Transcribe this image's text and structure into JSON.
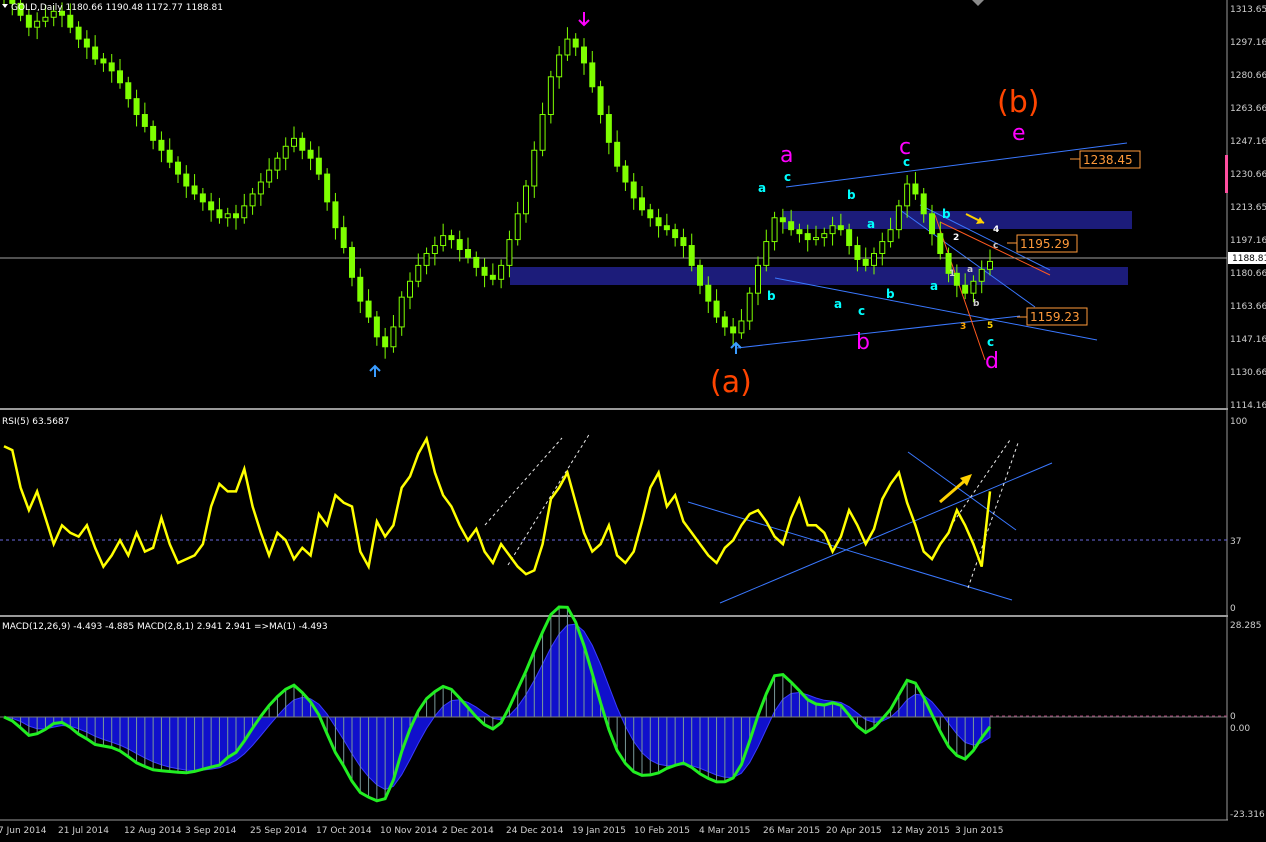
{
  "window": {
    "main_header": "GOLD,Daily  1180.66 1190.48 1172.77 1188.81",
    "rsi_header": "RSI(5) 63.5687",
    "macd_header": "MACD(12,26,9) -4.493 -4.885  MACD(2,8,1) 2.941 2.941  =>MA(1) -4.493"
  },
  "colors": {
    "background": "#000000",
    "candle": "#7fff00",
    "rsi_line": "#ffff00",
    "macd_line": "#22ee22",
    "macd_hist": "#1010cc",
    "zone": "#1c1c7a",
    "trendline": "#3a78ff",
    "orange_label": "#ff4500",
    "magenta_label": "#ff00ff",
    "cyan_label": "#00ffff",
    "price_line": "#a0a0a0"
  },
  "chart_data": [
    {
      "type": "candlestick",
      "title": "GOLD,Daily",
      "ohlc_last": {
        "open": 1180.66,
        "high": 1190.48,
        "low": 1172.77,
        "close": 1188.81
      },
      "current_price": "1188.81",
      "y_ticks": [
        "1313.65",
        "1297.16",
        "1280.66",
        "1263.66",
        "1247.16",
        "1230.66",
        "1213.65",
        "1197.16",
        "1180.66",
        "1163.66",
        "1147.16",
        "1130.66",
        "1114.16"
      ],
      "x_ticks": [
        "7 Jun 2014",
        "21 Jul 2014",
        "12 Aug 2014",
        "3 Sep 2014",
        "25 Sep 2014",
        "17 Oct 2014",
        "10 Nov 2014",
        "2 Dec 2014",
        "24 Dec 2014",
        "19 Jan 2015",
        "10 Feb 2015",
        "4 Mar 2015",
        "26 Mar 2015",
        "20 Apr 2015",
        "12 May 2015",
        "3 Jun 2015"
      ],
      "close_series": [
        1322,
        1318,
        1312,
        1306,
        1309,
        1311,
        1314,
        1312,
        1306,
        1300,
        1296,
        1290,
        1288,
        1284,
        1278,
        1270,
        1262,
        1256,
        1249,
        1244,
        1238,
        1232,
        1226,
        1222,
        1218,
        1214,
        1210,
        1212,
        1210,
        1216,
        1222,
        1228,
        1234,
        1240,
        1246,
        1250,
        1244,
        1240,
        1232,
        1218,
        1205,
        1195,
        1180,
        1168,
        1160,
        1150,
        1145,
        1155,
        1170,
        1178,
        1186,
        1192,
        1196,
        1201,
        1199,
        1194,
        1190,
        1185,
        1181,
        1179,
        1186,
        1199,
        1212,
        1226,
        1244,
        1262,
        1281,
        1292,
        1300,
        1296,
        1288,
        1276,
        1262,
        1248,
        1236,
        1228,
        1220,
        1214,
        1210,
        1206,
        1204,
        1200,
        1196,
        1186,
        1176,
        1168,
        1160,
        1155,
        1152,
        1158,
        1172,
        1186,
        1198,
        1210,
        1208,
        1204,
        1202,
        1199,
        1200,
        1202,
        1206,
        1204,
        1196,
        1189,
        1186,
        1192,
        1198,
        1204,
        1216,
        1227,
        1222,
        1212,
        1202,
        1192,
        1182,
        1176,
        1172,
        1178,
        1184,
        1188
      ],
      "labels": [
        {
          "text": "(a)",
          "color": "#ff4500"
        },
        {
          "text": "(b)",
          "color": "#ff4500"
        },
        {
          "text": "a",
          "color": "#ff00ff"
        },
        {
          "text": "b",
          "color": "#ff00ff"
        },
        {
          "text": "c",
          "color": "#ff00ff"
        },
        {
          "text": "d",
          "color": "#ff00ff"
        },
        {
          "text": "e",
          "color": "#ff00ff"
        }
      ],
      "price_tags": [
        "1238.45",
        "1195.29",
        "1159.23"
      ]
    },
    {
      "type": "line",
      "title": "RSI(5)",
      "value": 63.5687,
      "y_ticks": [
        "100",
        "37",
        "0"
      ],
      "ylim": [
        0,
        100
      ],
      "level": 37,
      "values": [
        86,
        84,
        64,
        52,
        62,
        48,
        34,
        44,
        40,
        38,
        44,
        32,
        22,
        28,
        36,
        28,
        40,
        30,
        32,
        48,
        34,
        24,
        26,
        28,
        34,
        54,
        66,
        62,
        62,
        74,
        54,
        40,
        28,
        40,
        36,
        26,
        32,
        28,
        50,
        44,
        60,
        56,
        54,
        30,
        22,
        46,
        38,
        44,
        64,
        70,
        82,
        90,
        72,
        60,
        54,
        44,
        36,
        42,
        30,
        24,
        34,
        28,
        22,
        18,
        20,
        34,
        58,
        64,
        72,
        56,
        40,
        30,
        34,
        44,
        28,
        24,
        30,
        46,
        64,
        72,
        54,
        60,
        46,
        40,
        34,
        28,
        24,
        32,
        36,
        44,
        50,
        52,
        46,
        38,
        34,
        48,
        58,
        44,
        44,
        40,
        30,
        38,
        52,
        44,
        34,
        42,
        58,
        66,
        72,
        56,
        44,
        30,
        26,
        34,
        40,
        52,
        44,
        34,
        22,
        62
      ]
    },
    {
      "type": "line_histogram",
      "title": "MACD(12,26,9)",
      "values_text": [
        "-4.493",
        "-4.885"
      ],
      "fast_values_text": [
        "2.941",
        "2.941"
      ],
      "ma_text": "-4.493",
      "y_ticks": [
        "28.285",
        "0",
        "0.00",
        "-23.316"
      ],
      "ylim": [
        -23.316,
        28.285
      ]
    }
  ]
}
